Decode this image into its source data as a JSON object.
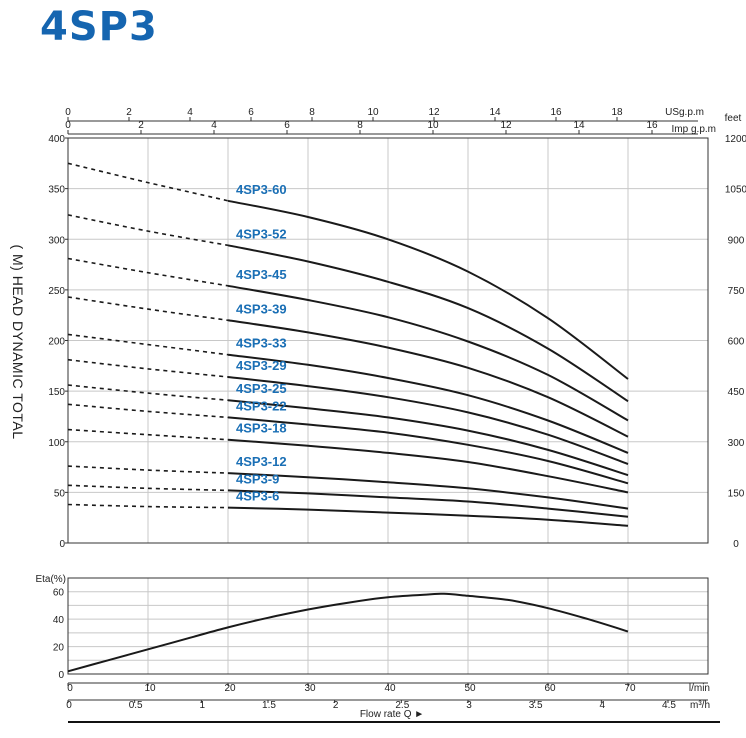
{
  "page": {
    "title": "4SP3",
    "yaxis_title": "( M) HEAD DYNAMIC TOTAL"
  },
  "chart_data": [
    {
      "type": "line",
      "name": "head",
      "ylabel": "( M) HEAD DYNAMIC TOTAL",
      "ylim": [
        0,
        400
      ],
      "yticks": [
        0,
        50,
        100,
        150,
        200,
        250,
        300,
        350,
        400
      ],
      "right_axis": {
        "label": "feet",
        "lim": [
          0,
          1200
        ],
        "ticks": [
          0,
          150,
          300,
          450,
          600,
          750,
          900,
          1050,
          1200
        ]
      },
      "top_axis_usgpm": {
        "label": "USg.p.m",
        "ticks": [
          0,
          2,
          4,
          6,
          8,
          10,
          12,
          14,
          16,
          18
        ]
      },
      "top_axis_impgpm": {
        "label": "Imp g.p.m",
        "ticks": [
          0,
          2,
          4,
          6,
          8,
          10,
          12,
          14,
          16
        ]
      },
      "x_lmin_lim": [
        0,
        80
      ],
      "x_dashed_range": [
        0,
        20
      ],
      "grid": true,
      "series": [
        {
          "name": "4SP3-60",
          "x": [
            0,
            10,
            20,
            30,
            40,
            50,
            60,
            70
          ],
          "y": [
            375,
            356,
            338,
            322,
            300,
            268,
            222,
            162
          ]
        },
        {
          "name": "4SP3-52",
          "x": [
            0,
            10,
            20,
            30,
            40,
            50,
            60,
            70
          ],
          "y": [
            324,
            308,
            294,
            278,
            258,
            232,
            192,
            140
          ]
        },
        {
          "name": "4SP3-45",
          "x": [
            0,
            10,
            20,
            30,
            40,
            50,
            60,
            70
          ],
          "y": [
            281,
            267,
            254,
            240,
            223,
            199,
            166,
            121
          ]
        },
        {
          "name": "4SP3-39",
          "x": [
            0,
            10,
            20,
            30,
            40,
            50,
            60,
            70
          ],
          "y": [
            243,
            231,
            220,
            208,
            193,
            173,
            144,
            105
          ]
        },
        {
          "name": "4SP3-33",
          "x": [
            0,
            10,
            20,
            30,
            40,
            50,
            60,
            70
          ],
          "y": [
            206,
            196,
            186,
            176,
            163,
            146,
            121,
            89
          ]
        },
        {
          "name": "4SP3-29",
          "x": [
            0,
            10,
            20,
            30,
            40,
            50,
            60,
            70
          ],
          "y": [
            181,
            172,
            164,
            155,
            144,
            129,
            107,
            78
          ]
        },
        {
          "name": "4SP3-25",
          "x": [
            0,
            10,
            20,
            30,
            40,
            50,
            60,
            70
          ],
          "y": [
            156,
            148,
            141,
            133,
            124,
            111,
            92,
            67
          ]
        },
        {
          "name": "4SP3-22",
          "x": [
            0,
            10,
            20,
            30,
            40,
            50,
            60,
            70
          ],
          "y": [
            137,
            130,
            124,
            117,
            109,
            97,
            81,
            59
          ]
        },
        {
          "name": "4SP3-18",
          "x": [
            0,
            10,
            20,
            30,
            40,
            50,
            60,
            70
          ],
          "y": [
            112,
            107,
            102,
            96,
            89,
            80,
            66,
            50
          ]
        },
        {
          "name": "4SP3-12",
          "x": [
            0,
            10,
            20,
            30,
            40,
            50,
            60,
            70
          ],
          "y": [
            76,
            72,
            69,
            65,
            60,
            54,
            45,
            34
          ]
        },
        {
          "name": "4SP3-9",
          "x": [
            0,
            10,
            20,
            30,
            40,
            50,
            60,
            70
          ],
          "y": [
            57,
            54,
            52,
            49,
            45,
            41,
            34,
            26
          ]
        },
        {
          "name": "4SP3-6",
          "x": [
            0,
            10,
            20,
            30,
            40,
            50,
            60,
            70
          ],
          "y": [
            38,
            36,
            35,
            33,
            30,
            27,
            23,
            17
          ]
        }
      ]
    },
    {
      "type": "line",
      "name": "efficiency",
      "ylabel": "Eta(%)",
      "ylim": [
        0,
        70
      ],
      "yticks": [
        0,
        20,
        40,
        60
      ],
      "grid": true,
      "series": [
        {
          "x": [
            0,
            5,
            10,
            15,
            20,
            25,
            30,
            35,
            40,
            45,
            47,
            50,
            55,
            60,
            65,
            70
          ],
          "y": [
            2,
            10,
            18,
            26,
            34,
            41,
            47,
            52,
            56,
            58,
            58.5,
            57,
            54,
            48,
            40,
            31
          ]
        }
      ]
    }
  ],
  "bottom_axis": {
    "lmin_label": "l/min",
    "lmin_ticks": [
      0,
      10,
      20,
      30,
      40,
      50,
      60,
      70
    ],
    "m3h_label": "m³/h",
    "m3h_ticks": [
      "0",
      "0.5",
      "1",
      "1.5",
      "2",
      "2.5",
      "3",
      "3.5",
      "4",
      "4.5"
    ],
    "caption": "Flow rate Q   ►"
  }
}
